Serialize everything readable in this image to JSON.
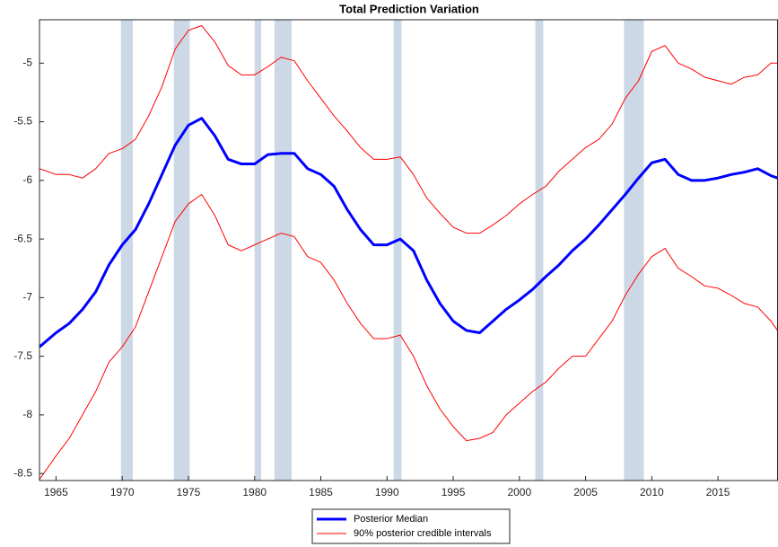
{
  "chart_data": {
    "type": "line",
    "title": "Total Prediction Variation",
    "x": [
      1963.75,
      1965,
      1966,
      1967,
      1968,
      1969,
      1970,
      1971,
      1972,
      1973,
      1974,
      1975,
      1976,
      1977,
      1978,
      1979,
      1980,
      1981,
      1982,
      1983,
      1984,
      1985,
      1986,
      1987,
      1988,
      1989,
      1990,
      1991,
      1992,
      1993,
      1994,
      1995,
      1996,
      1997,
      1998,
      1999,
      2000,
      2001,
      2002,
      2003,
      2004,
      2005,
      2006,
      2007,
      2008,
      2009,
      2010,
      2011,
      2012,
      2013,
      2014,
      2015,
      2016,
      2017,
      2018,
      2019,
      2019.5
    ],
    "series": [
      {
        "name": "Posterior Median",
        "color": "#0000ff",
        "width": 3,
        "values": [
          -7.42,
          -7.3,
          -7.22,
          -7.1,
          -6.95,
          -6.72,
          -6.55,
          -6.42,
          -6.2,
          -5.95,
          -5.7,
          -5.53,
          -5.47,
          -5.62,
          -5.82,
          -5.86,
          -5.86,
          -5.78,
          -5.77,
          -5.77,
          -5.9,
          -5.95,
          -6.05,
          -6.25,
          -6.42,
          -6.55,
          -6.55,
          -6.5,
          -6.6,
          -6.85,
          -7.05,
          -7.2,
          -7.28,
          -7.3,
          -7.2,
          -7.1,
          -7.02,
          -6.93,
          -6.82,
          -6.72,
          -6.6,
          -6.5,
          -6.38,
          -6.25,
          -6.12,
          -5.98,
          -5.85,
          -5.82,
          -5.95,
          -6.0,
          -6.0,
          -5.98,
          -5.95,
          -5.93,
          -5.9,
          -5.96,
          -5.98
        ]
      },
      {
        "name": "90% posterior credible intervals",
        "color": "#ff0000",
        "width": 1,
        "values": [
          -5.9,
          -5.95,
          -5.95,
          -5.98,
          -5.9,
          -5.77,
          -5.73,
          -5.65,
          -5.45,
          -5.2,
          -4.88,
          -4.72,
          -4.68,
          -4.82,
          -5.02,
          -5.1,
          -5.1,
          -5.03,
          -4.95,
          -4.98,
          -5.15,
          -5.3,
          -5.45,
          -5.58,
          -5.72,
          -5.82,
          -5.82,
          -5.8,
          -5.95,
          -6.15,
          -6.28,
          -6.4,
          -6.45,
          -6.45,
          -6.38,
          -6.3,
          -6.2,
          -6.12,
          -6.05,
          -5.92,
          -5.82,
          -5.72,
          -5.65,
          -5.52,
          -5.3,
          -5.15,
          -4.9,
          -4.85,
          -5.0,
          -5.05,
          -5.12,
          -5.15,
          -5.18,
          -5.12,
          -5.1,
          -5.0,
          -5.0
        ]
      },
      {
        "color": "#ff0000",
        "width": 1,
        "values": [
          -8.55,
          -8.35,
          -8.2,
          -8.0,
          -7.8,
          -7.55,
          -7.42,
          -7.25,
          -6.95,
          -6.65,
          -6.35,
          -6.2,
          -6.12,
          -6.3,
          -6.55,
          -6.6,
          -6.55,
          -6.5,
          -6.45,
          -6.48,
          -6.65,
          -6.7,
          -6.85,
          -7.05,
          -7.22,
          -7.35,
          -7.35,
          -7.32,
          -7.5,
          -7.75,
          -7.95,
          -8.1,
          -8.22,
          -8.2,
          -8.15,
          -8.0,
          -7.9,
          -7.8,
          -7.72,
          -7.6,
          -7.5,
          -7.5,
          -7.35,
          -7.2,
          -6.98,
          -6.8,
          -6.65,
          -6.58,
          -6.75,
          -6.82,
          -6.9,
          -6.92,
          -6.98,
          -7.05,
          -7.08,
          -7.2,
          -7.28
        ]
      }
    ],
    "shaded_regions": [
      [
        1969.9,
        1970.8
      ],
      [
        1973.9,
        1975.1
      ],
      [
        1980.0,
        1980.5
      ],
      [
        1981.5,
        1982.8
      ],
      [
        1990.5,
        1991.1
      ],
      [
        2001.2,
        2001.8
      ],
      [
        2007.9,
        2009.4
      ]
    ],
    "shade_color": "#ccd8e6",
    "xlim": [
      1963.75,
      2019.5
    ],
    "xticks": [
      1965,
      1970,
      1975,
      1980,
      1985,
      1990,
      1995,
      2000,
      2005,
      2010,
      2015
    ],
    "ylim": [
      -8.56,
      -4.63
    ],
    "yticks": [
      -8.5,
      -8,
      -7.5,
      -7,
      -6.5,
      -6,
      -5.5,
      -5
    ],
    "legend": "bottom"
  }
}
